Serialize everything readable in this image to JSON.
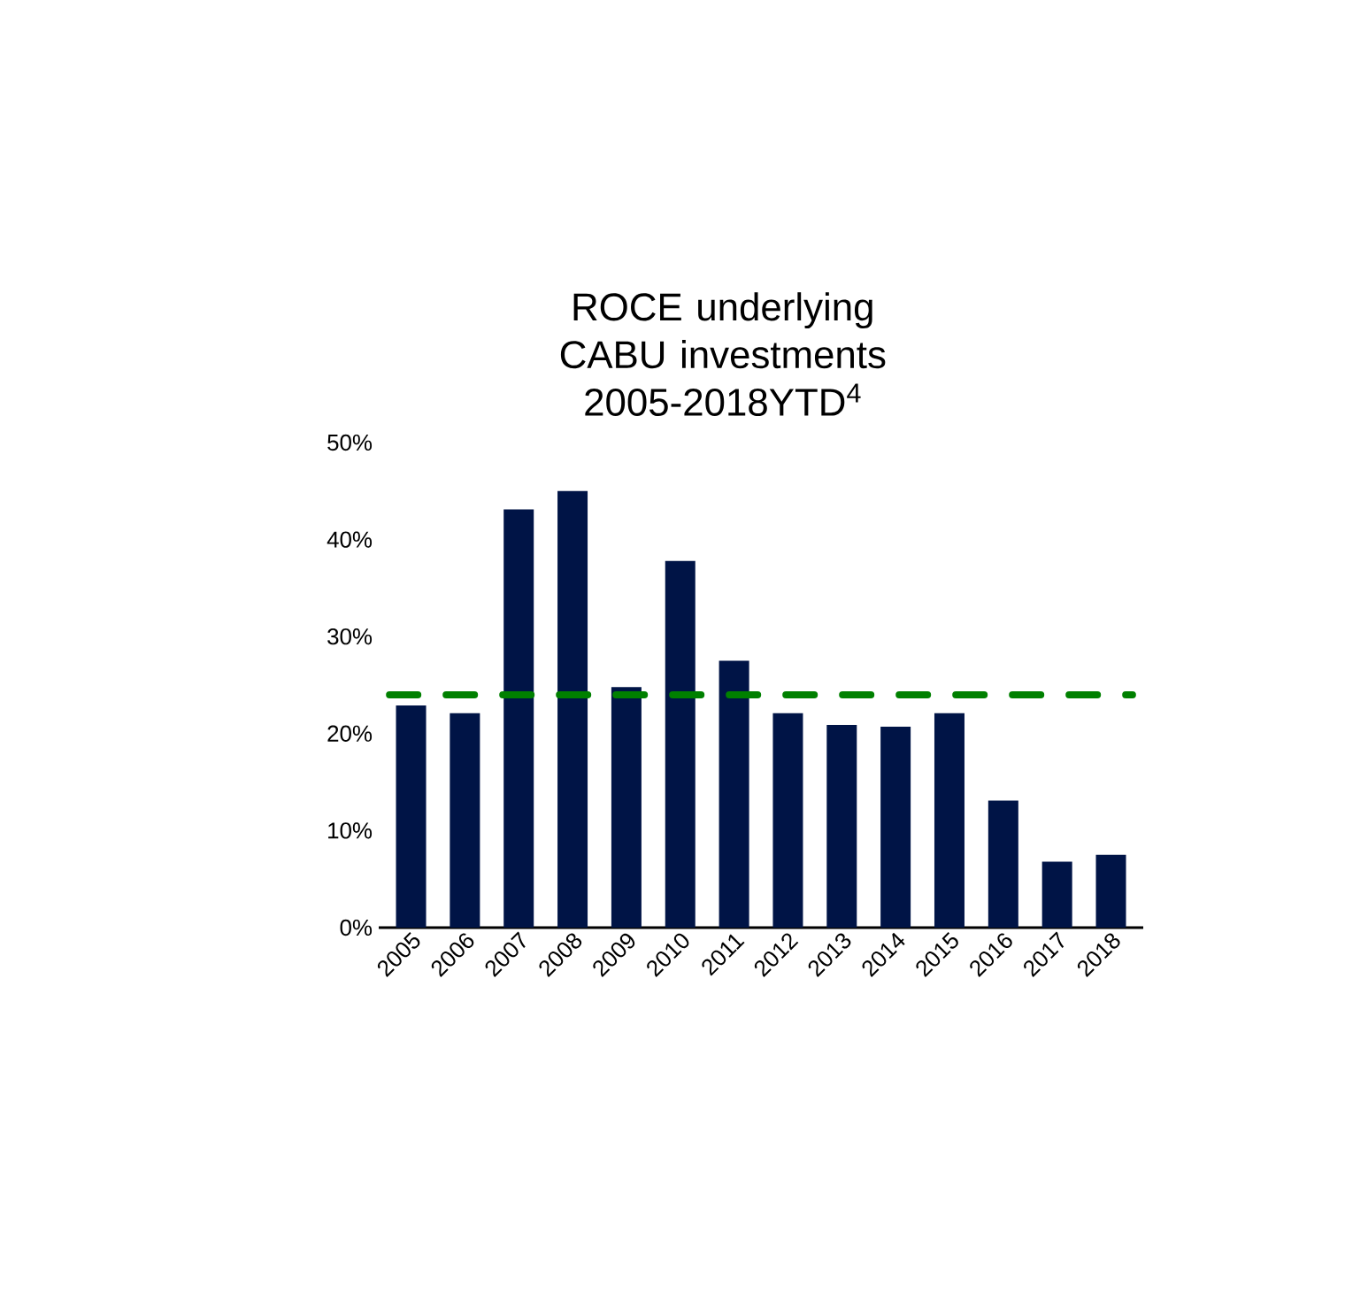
{
  "chart_data": {
    "type": "bar",
    "title": "ROCE underlying CABU investments 2005-2018YTD$^{4}$",
    "categories": [
      "2005",
      "2006",
      "2007",
      "2008",
      "2009",
      "2010",
      "2011",
      "2012",
      "2013",
      "2014",
      "2015",
      "2016",
      "2017",
      "2018"
    ],
    "values": [
      22.9,
      22.1,
      43.1,
      45.0,
      24.8,
      37.8,
      27.5,
      22.1,
      20.9,
      20.7,
      22.1,
      13.1,
      6.8,
      7.5
    ],
    "color": "#001446",
    "ylim": [
      0,
      50
    ],
    "yticks": [
      {
        "value": 0,
        "label": "0%"
      },
      {
        "value": 10,
        "label": "10%"
      },
      {
        "value": 20,
        "label": "20%"
      },
      {
        "value": 30,
        "label": "30%"
      },
      {
        "value": 40,
        "label": "40%"
      },
      {
        "value": 50,
        "label": "50%"
      }
    ],
    "ref_lines": [
      {
        "axis": "y",
        "value": 24,
        "color": "#008000",
        "line_style": "dashed"
      }
    ]
  }
}
